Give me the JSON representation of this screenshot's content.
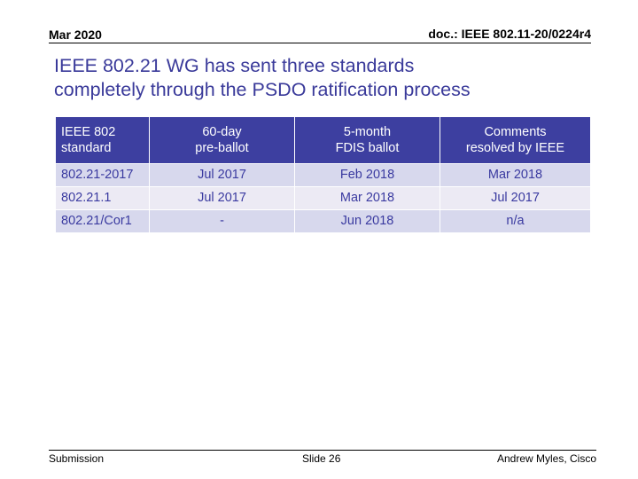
{
  "header": {
    "date": "Mar 2020",
    "doc": "doc.: IEEE 802.11-20/0224r4"
  },
  "title": {
    "line1": "IEEE 802.21 WG has sent three standards",
    "line2": "completely through the PSDO ratification process"
  },
  "table": {
    "headers": [
      [
        "IEEE 802",
        "standard"
      ],
      [
        "60-day",
        "pre-ballot"
      ],
      [
        "5-month",
        "FDIS ballot"
      ],
      [
        "Comments",
        "resolved by IEEE"
      ]
    ],
    "rows": [
      [
        "802.21-2017",
        "Jul 2017",
        "Feb 2018",
        "Mar 2018"
      ],
      [
        "802.21.1",
        "Jul 2017",
        "Mar 2018",
        "Jul 2017"
      ],
      [
        "802.21/Cor1",
        "-",
        "Jun 2018",
        "n/a"
      ]
    ]
  },
  "footer": {
    "left": "Submission",
    "center": "Slide 26",
    "right": "Andrew Myles, Cisco"
  },
  "colors": {
    "title": "#3a3a9a",
    "header_fill": "#3d3fa0",
    "row_odd": "#d7d8ed",
    "row_even": "#eceaf4",
    "cell_text": "#3a3aa0"
  }
}
